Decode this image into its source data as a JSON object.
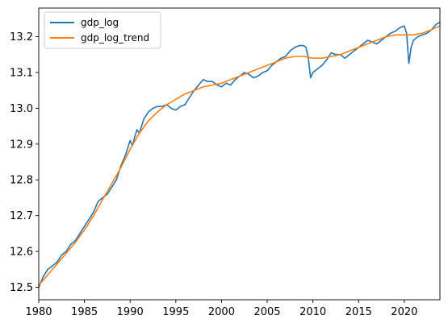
{
  "chart_data": {
    "type": "line",
    "title": "",
    "xlabel": "",
    "ylabel": "",
    "xlim": [
      1980.0,
      2023.9
    ],
    "ylim": [
      12.465,
      13.28
    ],
    "x_ticks": [
      1980,
      1985,
      1990,
      1995,
      2000,
      2005,
      2010,
      2015,
      2020
    ],
    "y_ticks": [
      12.5,
      12.6,
      12.7,
      12.8,
      12.9,
      13.0,
      13.1,
      13.2
    ],
    "y_tick_labels": [
      "12.5",
      "12.6",
      "12.7",
      "12.8",
      "12.9",
      "13.0",
      "13.1",
      "13.2"
    ],
    "grid": false,
    "legend_position": "upper-left",
    "series": [
      {
        "name": "gdp_log",
        "color": "#1f77b4",
        "points": [
          [
            1980.0,
            12.5
          ],
          [
            1980.5,
            12.53
          ],
          [
            1981.0,
            12.55
          ],
          [
            1981.5,
            12.56
          ],
          [
            1982.0,
            12.57
          ],
          [
            1982.5,
            12.59
          ],
          [
            1983.0,
            12.6
          ],
          [
            1983.5,
            12.62
          ],
          [
            1984.0,
            12.63
          ],
          [
            1984.5,
            12.65
          ],
          [
            1985.0,
            12.67
          ],
          [
            1985.5,
            12.69
          ],
          [
            1986.0,
            12.71
          ],
          [
            1986.5,
            12.74
          ],
          [
            1987.0,
            12.75
          ],
          [
            1987.5,
            12.76
          ],
          [
            1988.0,
            12.78
          ],
          [
            1988.5,
            12.8
          ],
          [
            1989.0,
            12.84
          ],
          [
            1989.5,
            12.87
          ],
          [
            1990.0,
            12.91
          ],
          [
            1990.25,
            12.895
          ],
          [
            1990.5,
            12.92
          ],
          [
            1990.75,
            12.94
          ],
          [
            1991.0,
            12.93
          ],
          [
            1991.5,
            12.97
          ],
          [
            1992.0,
            12.99
          ],
          [
            1992.5,
            13.0
          ],
          [
            1993.0,
            13.005
          ],
          [
            1993.5,
            13.005
          ],
          [
            1994.0,
            13.01
          ],
          [
            1994.5,
            13.0
          ],
          [
            1995.0,
            12.995
          ],
          [
            1995.5,
            13.005
          ],
          [
            1996.0,
            13.01
          ],
          [
            1996.5,
            13.03
          ],
          [
            1997.0,
            13.05
          ],
          [
            1997.5,
            13.065
          ],
          [
            1998.0,
            13.08
          ],
          [
            1998.5,
            13.075
          ],
          [
            1999.0,
            13.075
          ],
          [
            1999.5,
            13.065
          ],
          [
            2000.0,
            13.06
          ],
          [
            2000.5,
            13.07
          ],
          [
            2001.0,
            13.065
          ],
          [
            2001.5,
            13.08
          ],
          [
            2002.0,
            13.09
          ],
          [
            2002.5,
            13.1
          ],
          [
            2003.0,
            13.095
          ],
          [
            2003.5,
            13.085
          ],
          [
            2004.0,
            13.09
          ],
          [
            2004.5,
            13.1
          ],
          [
            2005.0,
            13.105
          ],
          [
            2005.5,
            13.12
          ],
          [
            2006.0,
            13.13
          ],
          [
            2006.5,
            13.14
          ],
          [
            2007.0,
            13.145
          ],
          [
            2007.5,
            13.16
          ],
          [
            2008.0,
            13.17
          ],
          [
            2008.5,
            13.175
          ],
          [
            2009.0,
            13.175
          ],
          [
            2009.25,
            13.17
          ],
          [
            2009.5,
            13.14
          ],
          [
            2009.75,
            13.085
          ],
          [
            2010.0,
            13.1
          ],
          [
            2010.5,
            13.11
          ],
          [
            2011.0,
            13.12
          ],
          [
            2011.5,
            13.135
          ],
          [
            2012.0,
            13.155
          ],
          [
            2012.5,
            13.15
          ],
          [
            2013.0,
            13.15
          ],
          [
            2013.5,
            13.14
          ],
          [
            2014.0,
            13.15
          ],
          [
            2014.5,
            13.16
          ],
          [
            2015.0,
            13.17
          ],
          [
            2015.5,
            13.18
          ],
          [
            2016.0,
            13.19
          ],
          [
            2016.5,
            13.185
          ],
          [
            2017.0,
            13.18
          ],
          [
            2017.5,
            13.19
          ],
          [
            2018.0,
            13.2
          ],
          [
            2018.5,
            13.21
          ],
          [
            2019.0,
            13.215
          ],
          [
            2019.5,
            13.225
          ],
          [
            2020.0,
            13.23
          ],
          [
            2020.25,
            13.21
          ],
          [
            2020.5,
            13.125
          ],
          [
            2020.75,
            13.17
          ],
          [
            2021.0,
            13.19
          ],
          [
            2021.5,
            13.2
          ],
          [
            2022.0,
            13.205
          ],
          [
            2022.5,
            13.21
          ],
          [
            2023.0,
            13.22
          ],
          [
            2023.5,
            13.235
          ],
          [
            2023.9,
            13.24
          ]
        ]
      },
      {
        "name": "gdp_log_trend",
        "color": "#ff7f0e",
        "points": [
          [
            1980.0,
            12.505
          ],
          [
            1981.0,
            12.535
          ],
          [
            1982.0,
            12.565
          ],
          [
            1983.0,
            12.595
          ],
          [
            1984.0,
            12.625
          ],
          [
            1985.0,
            12.66
          ],
          [
            1986.0,
            12.7
          ],
          [
            1987.0,
            12.745
          ],
          [
            1988.0,
            12.79
          ],
          [
            1989.0,
            12.835
          ],
          [
            1990.0,
            12.885
          ],
          [
            1991.0,
            12.93
          ],
          [
            1992.0,
            12.965
          ],
          [
            1993.0,
            12.99
          ],
          [
            1994.0,
            13.01
          ],
          [
            1995.0,
            13.025
          ],
          [
            1996.0,
            13.04
          ],
          [
            1997.0,
            13.05
          ],
          [
            1998.0,
            13.06
          ],
          [
            1999.0,
            13.065
          ],
          [
            2000.0,
            13.07
          ],
          [
            2001.0,
            13.08
          ],
          [
            2002.0,
            13.09
          ],
          [
            2003.0,
            13.1
          ],
          [
            2004.0,
            13.11
          ],
          [
            2005.0,
            13.12
          ],
          [
            2006.0,
            13.13
          ],
          [
            2007.0,
            13.14
          ],
          [
            2008.0,
            13.145
          ],
          [
            2009.0,
            13.145
          ],
          [
            2010.0,
            13.14
          ],
          [
            2011.0,
            13.14
          ],
          [
            2012.0,
            13.145
          ],
          [
            2013.0,
            13.15
          ],
          [
            2014.0,
            13.16
          ],
          [
            2015.0,
            13.17
          ],
          [
            2016.0,
            13.18
          ],
          [
            2017.0,
            13.19
          ],
          [
            2018.0,
            13.2
          ],
          [
            2019.0,
            13.205
          ],
          [
            2020.0,
            13.205
          ],
          [
            2021.0,
            13.205
          ],
          [
            2022.0,
            13.21
          ],
          [
            2023.0,
            13.22
          ],
          [
            2023.9,
            13.23
          ]
        ]
      }
    ]
  }
}
